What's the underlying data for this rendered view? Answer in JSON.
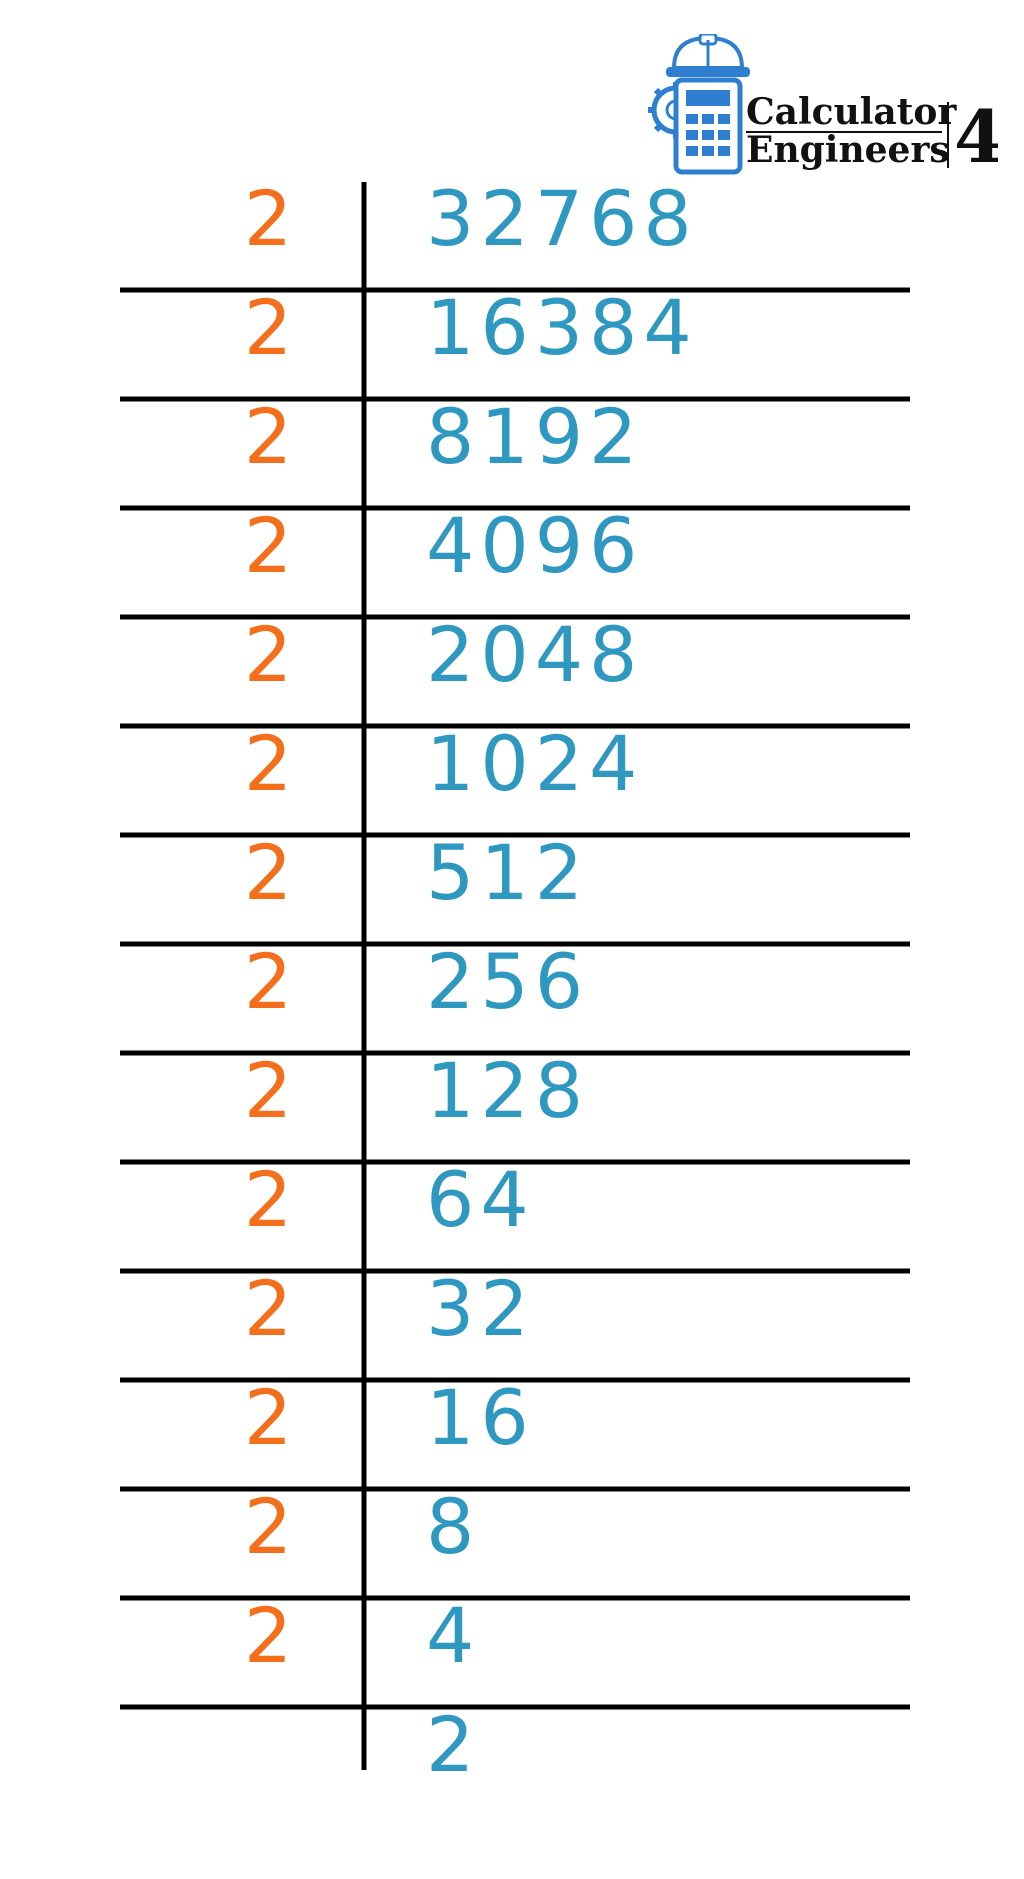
{
  "logo": {
    "line1": "Calculator",
    "line2": "Engineers",
    "suffix": "4",
    "icon": "calculator-hardhat-gear-icon"
  },
  "colors": {
    "divisor": "#f36f1b",
    "quotient": "#2f98c0",
    "lines": "#000000",
    "logo_blue": "#2f7fd1"
  },
  "ladder": {
    "rows": [
      {
        "divisor": "2",
        "value": "32768"
      },
      {
        "divisor": "2",
        "value": "16384"
      },
      {
        "divisor": "2",
        "value": "8192"
      },
      {
        "divisor": "2",
        "value": "4096"
      },
      {
        "divisor": "2",
        "value": "2048"
      },
      {
        "divisor": "2",
        "value": "1024"
      },
      {
        "divisor": "2",
        "value": "512"
      },
      {
        "divisor": "2",
        "value": "256"
      },
      {
        "divisor": "2",
        "value": "128"
      },
      {
        "divisor": "2",
        "value": "64"
      },
      {
        "divisor": "2",
        "value": "32"
      },
      {
        "divisor": "2",
        "value": "16"
      },
      {
        "divisor": "2",
        "value": "8"
      },
      {
        "divisor": "2",
        "value": "4"
      },
      {
        "divisor": "",
        "value": "2"
      }
    ]
  }
}
